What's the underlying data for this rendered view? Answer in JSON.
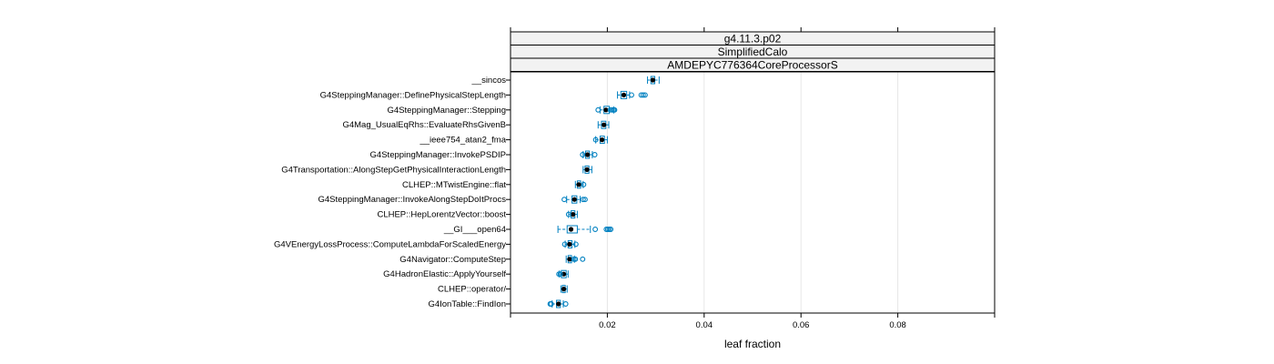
{
  "chart_data": {
    "type": "boxplot",
    "strips": [
      "g4.11.3.p02",
      "SimplifiedCalo",
      "AMDEPYC776364CoreProcessorS"
    ],
    "xlabel": "leaf fraction",
    "xlim": [
      0.0,
      0.1
    ],
    "xticks": [
      0.02,
      0.04,
      0.06,
      0.08
    ],
    "xtick_labels": [
      "0.02",
      "0.04",
      "0.06",
      "0.08"
    ],
    "grid": true,
    "colors": {
      "box": "#0080c0",
      "median": "#000000",
      "outlier": "#0080c0",
      "strip": "#f2f2f2"
    },
    "categories": [
      {
        "name": "__sincos",
        "stats": [
          0.0283,
          0.029,
          0.0294,
          0.0298,
          0.0307
        ],
        "outliers": []
      },
      {
        "name": "G4SteppingManager::DefinePhysicalStepLength",
        "stats": [
          0.0221,
          0.0228,
          0.0234,
          0.024,
          0.0246
        ],
        "outliers": [
          0.025,
          0.027,
          0.0274,
          0.0278
        ]
      },
      {
        "name": "G4SteppingManager::Stepping",
        "stats": [
          0.0185,
          0.0193,
          0.0197,
          0.0204,
          0.0213
        ],
        "outliers": [
          0.0181,
          0.0206,
          0.021,
          0.0213,
          0.0215
        ]
      },
      {
        "name": "G4Mag_UsualEqRhs::EvaluateRhsGivenB",
        "stats": [
          0.0181,
          0.0188,
          0.0193,
          0.0197,
          0.0203
        ],
        "outliers": []
      },
      {
        "name": "__ieee754_atan2_fma",
        "stats": [
          0.0176,
          0.0185,
          0.0189,
          0.0194,
          0.02
        ],
        "outliers": [
          0.0176
        ]
      },
      {
        "name": "G4SteppingManager::InvokePSDIP",
        "stats": [
          0.015,
          0.0155,
          0.0159,
          0.0163,
          0.0169
        ],
        "outliers": [
          0.0149,
          0.0174
        ]
      },
      {
        "name": "G4Transportation::AlongStepGetPhysicalInteractionLength",
        "stats": [
          0.015,
          0.0154,
          0.0158,
          0.0162,
          0.0168
        ],
        "outliers": []
      },
      {
        "name": "CLHEP::MTwistEngine::flat",
        "stats": [
          0.0134,
          0.0138,
          0.0141,
          0.0145,
          0.015
        ],
        "outliers": [
          0.0151
        ]
      },
      {
        "name": "G4SteppingManager::InvokeAlongStepDoItProcs",
        "stats": [
          0.0116,
          0.0127,
          0.0132,
          0.0137,
          0.0144
        ],
        "outliers": [
          0.0111,
          0.015,
          0.0154
        ]
      },
      {
        "name": "CLHEP::HepLorentzVector::boost",
        "stats": [
          0.012,
          0.0125,
          0.0129,
          0.0133,
          0.0138
        ],
        "outliers": [
          0.012
        ]
      },
      {
        "name": "__GI___open64",
        "stats": [
          0.0098,
          0.0117,
          0.0125,
          0.0138,
          0.0165
        ],
        "outliers": [
          0.0175,
          0.0198,
          0.0201,
          0.0204,
          0.0207
        ]
      },
      {
        "name": "G4VEnergyLossProcess::ComputeLambdaForScaledEnergy",
        "stats": [
          0.0113,
          0.0119,
          0.0122,
          0.0127,
          0.0133
        ],
        "outliers": [
          0.0112,
          0.0135
        ]
      },
      {
        "name": "G4Navigator::ComputeStep",
        "stats": [
          0.0115,
          0.0119,
          0.0122,
          0.0126,
          0.0132
        ],
        "outliers": [
          0.0131,
          0.0134,
          0.0149
        ]
      },
      {
        "name": "G4HadronElastic::ApplyYourself",
        "stats": [
          0.0101,
          0.0105,
          0.011,
          0.0115,
          0.0119
        ],
        "outliers": [
          0.01,
          0.0103
        ]
      },
      {
        "name": "CLHEP::operator/",
        "stats": [
          0.0104,
          0.0107,
          0.011,
          0.0113,
          0.0117
        ],
        "outliers": []
      },
      {
        "name": "G4IonTable::FindIon",
        "stats": [
          0.0086,
          0.0095,
          0.0099,
          0.0103,
          0.0109
        ],
        "outliers": [
          0.0082,
          0.0084,
          0.0114
        ]
      }
    ]
  }
}
